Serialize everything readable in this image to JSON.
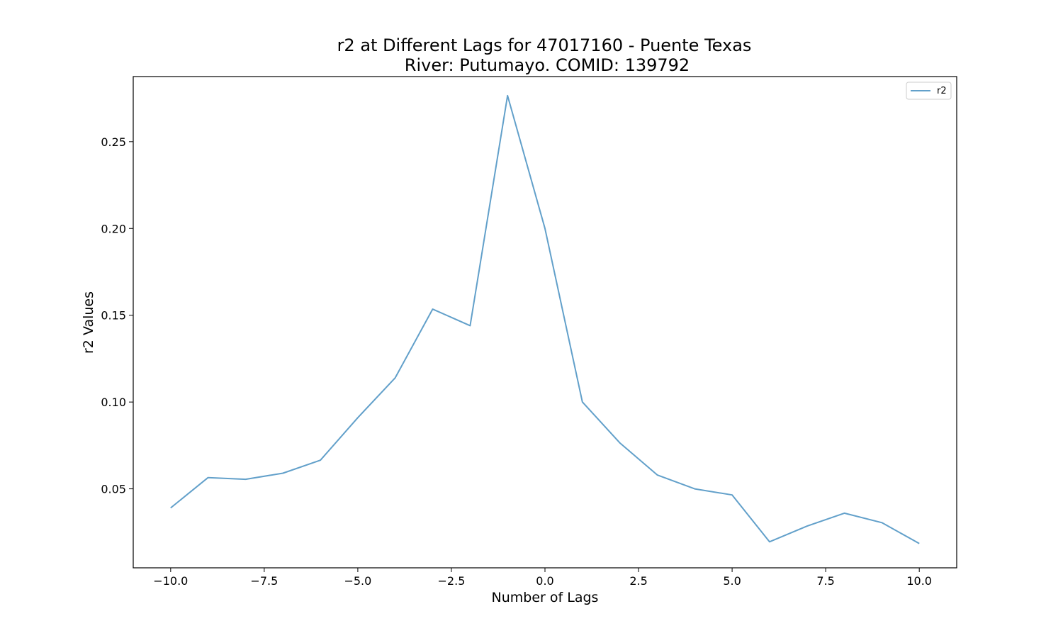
{
  "chart_data": {
    "type": "line",
    "title": "r2 at Different Lags for 47017160 - Puente Texas",
    "subtitle": "River: Putumayo. COMID: 139792",
    "xlabel": "Number of Lags",
    "ylabel": "r2 Values",
    "xlim": [
      -11,
      11
    ],
    "ylim": [
      0.0045,
      0.2875
    ],
    "xticks": [
      -10,
      -7.5,
      -5,
      -2.5,
      0,
      2.5,
      5,
      7.5,
      10
    ],
    "xtick_labels": [
      "−10.0",
      "−7.5",
      "−5.0",
      "−2.5",
      "0.0",
      "2.5",
      "5.0",
      "7.5",
      "10.0"
    ],
    "yticks": [
      0.05,
      0.1,
      0.15,
      0.2,
      0.25
    ],
    "ytick_labels": [
      "0.05",
      "0.10",
      "0.15",
      "0.20",
      "0.25"
    ],
    "grid": false,
    "legend_position": "top-right",
    "series": [
      {
        "name": "r2",
        "color": "#1f77b4",
        "x": [
          -10,
          -9,
          -8,
          -7,
          -6,
          -5,
          -4,
          -3,
          -2,
          -1,
          0,
          1,
          2,
          3,
          4,
          5,
          6,
          7,
          8,
          9,
          10
        ],
        "values": [
          0.039,
          0.0565,
          0.0555,
          0.059,
          0.0665,
          0.091,
          0.114,
          0.1535,
          0.144,
          0.2765,
          0.2,
          0.1,
          0.0765,
          0.058,
          0.05,
          0.0465,
          0.0195,
          0.0285,
          0.036,
          0.0305,
          0.0185
        ]
      }
    ]
  }
}
